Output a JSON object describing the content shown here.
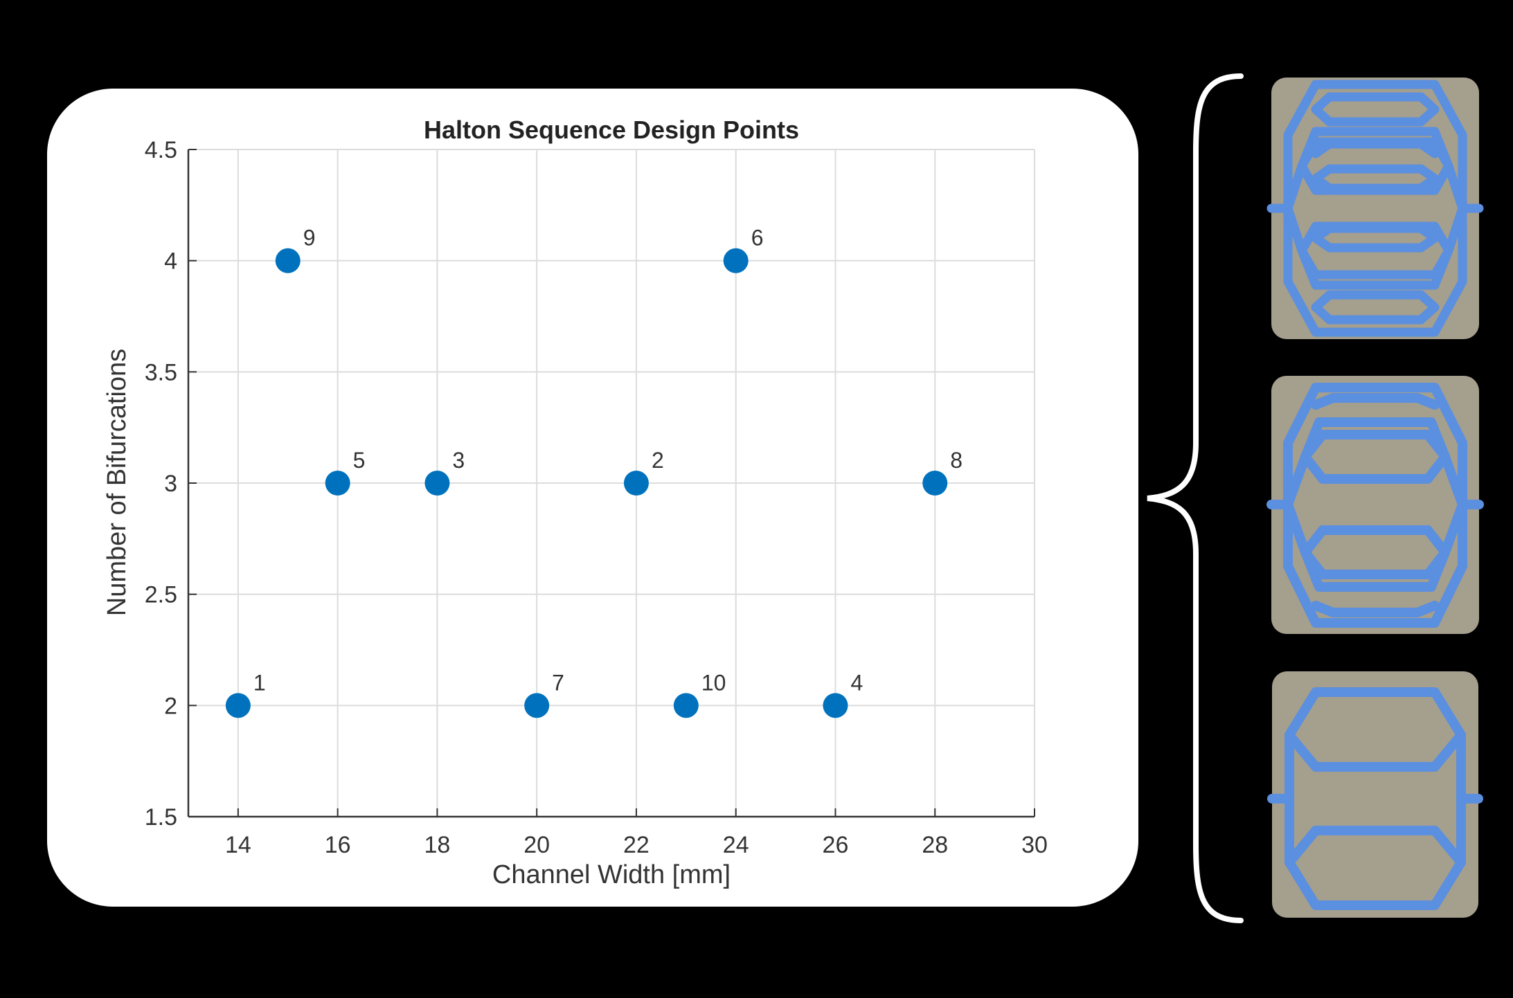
{
  "chart_data": {
    "type": "scatter",
    "title": "Halton Sequence Design Points",
    "xlabel": "Channel Width [mm]",
    "ylabel": "Number of Bifurcations",
    "xlim": [
      13,
      30
    ],
    "ylim": [
      1.5,
      4.5
    ],
    "xticks": [
      14,
      16,
      18,
      20,
      22,
      24,
      26,
      28,
      30
    ],
    "yticks": [
      1.5,
      2,
      2.5,
      3,
      3.5,
      4,
      4.5
    ],
    "grid": true,
    "points": [
      {
        "label": "1",
        "x": 14,
        "y": 2
      },
      {
        "label": "2",
        "x": 22,
        "y": 3
      },
      {
        "label": "3",
        "x": 18,
        "y": 3
      },
      {
        "label": "4",
        "x": 26,
        "y": 2
      },
      {
        "label": "5",
        "x": 16,
        "y": 3
      },
      {
        "label": "6",
        "x": 24,
        "y": 4
      },
      {
        "label": "7",
        "x": 20,
        "y": 2
      },
      {
        "label": "8",
        "x": 28,
        "y": 3
      },
      {
        "label": "9",
        "x": 15,
        "y": 4
      },
      {
        "label": "10",
        "x": 23,
        "y": 2
      }
    ],
    "marker_color": "#0072BD"
  },
  "thumbnails": [
    {
      "name": "channel-4-bifurcations",
      "bifurcations": 4
    },
    {
      "name": "channel-3-bifurcations",
      "bifurcations": 3
    },
    {
      "name": "channel-2-bifurcations",
      "bifurcations": 2
    }
  ],
  "colors": {
    "background": "#000000",
    "panel": "#ffffff",
    "thumb_bg": "#a59f8e",
    "channel": "#5b8fdf"
  }
}
